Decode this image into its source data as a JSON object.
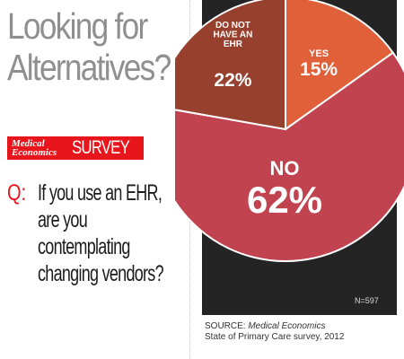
{
  "headline": {
    "line1": "Looking for",
    "line2": "Alternatives?"
  },
  "brand": {
    "logo_line1": "Medical",
    "logo_line2": "Economics",
    "survey": "SURVEY"
  },
  "question": {
    "prefix": "Q:",
    "lines": [
      "If you use an EHR,",
      "are you contemplating",
      "changing vendors?"
    ]
  },
  "note": "N=597",
  "source": {
    "prefix": "SOURCE: ",
    "publication": "Medical Economics",
    "line2": "State of Primary Care survey, 2012"
  },
  "colors": {
    "yes": "#e0603a",
    "no": "#c0434f",
    "no_ehr": "#98402e",
    "panel": "#242424",
    "accent": "#e8161c"
  },
  "chart_data": {
    "type": "pie",
    "slices": [
      {
        "label": "YES",
        "value": 15,
        "display": "15%",
        "color": "#e0603a"
      },
      {
        "label": "NO",
        "value": 62,
        "display": "62%",
        "color": "#c0434f"
      },
      {
        "label": "DO NOT HAVE AN EHR",
        "label_lines": [
          "DO NOT",
          "HAVE AN",
          "EHR"
        ],
        "value": 22,
        "display": "22%",
        "color": "#98402e"
      }
    ]
  }
}
